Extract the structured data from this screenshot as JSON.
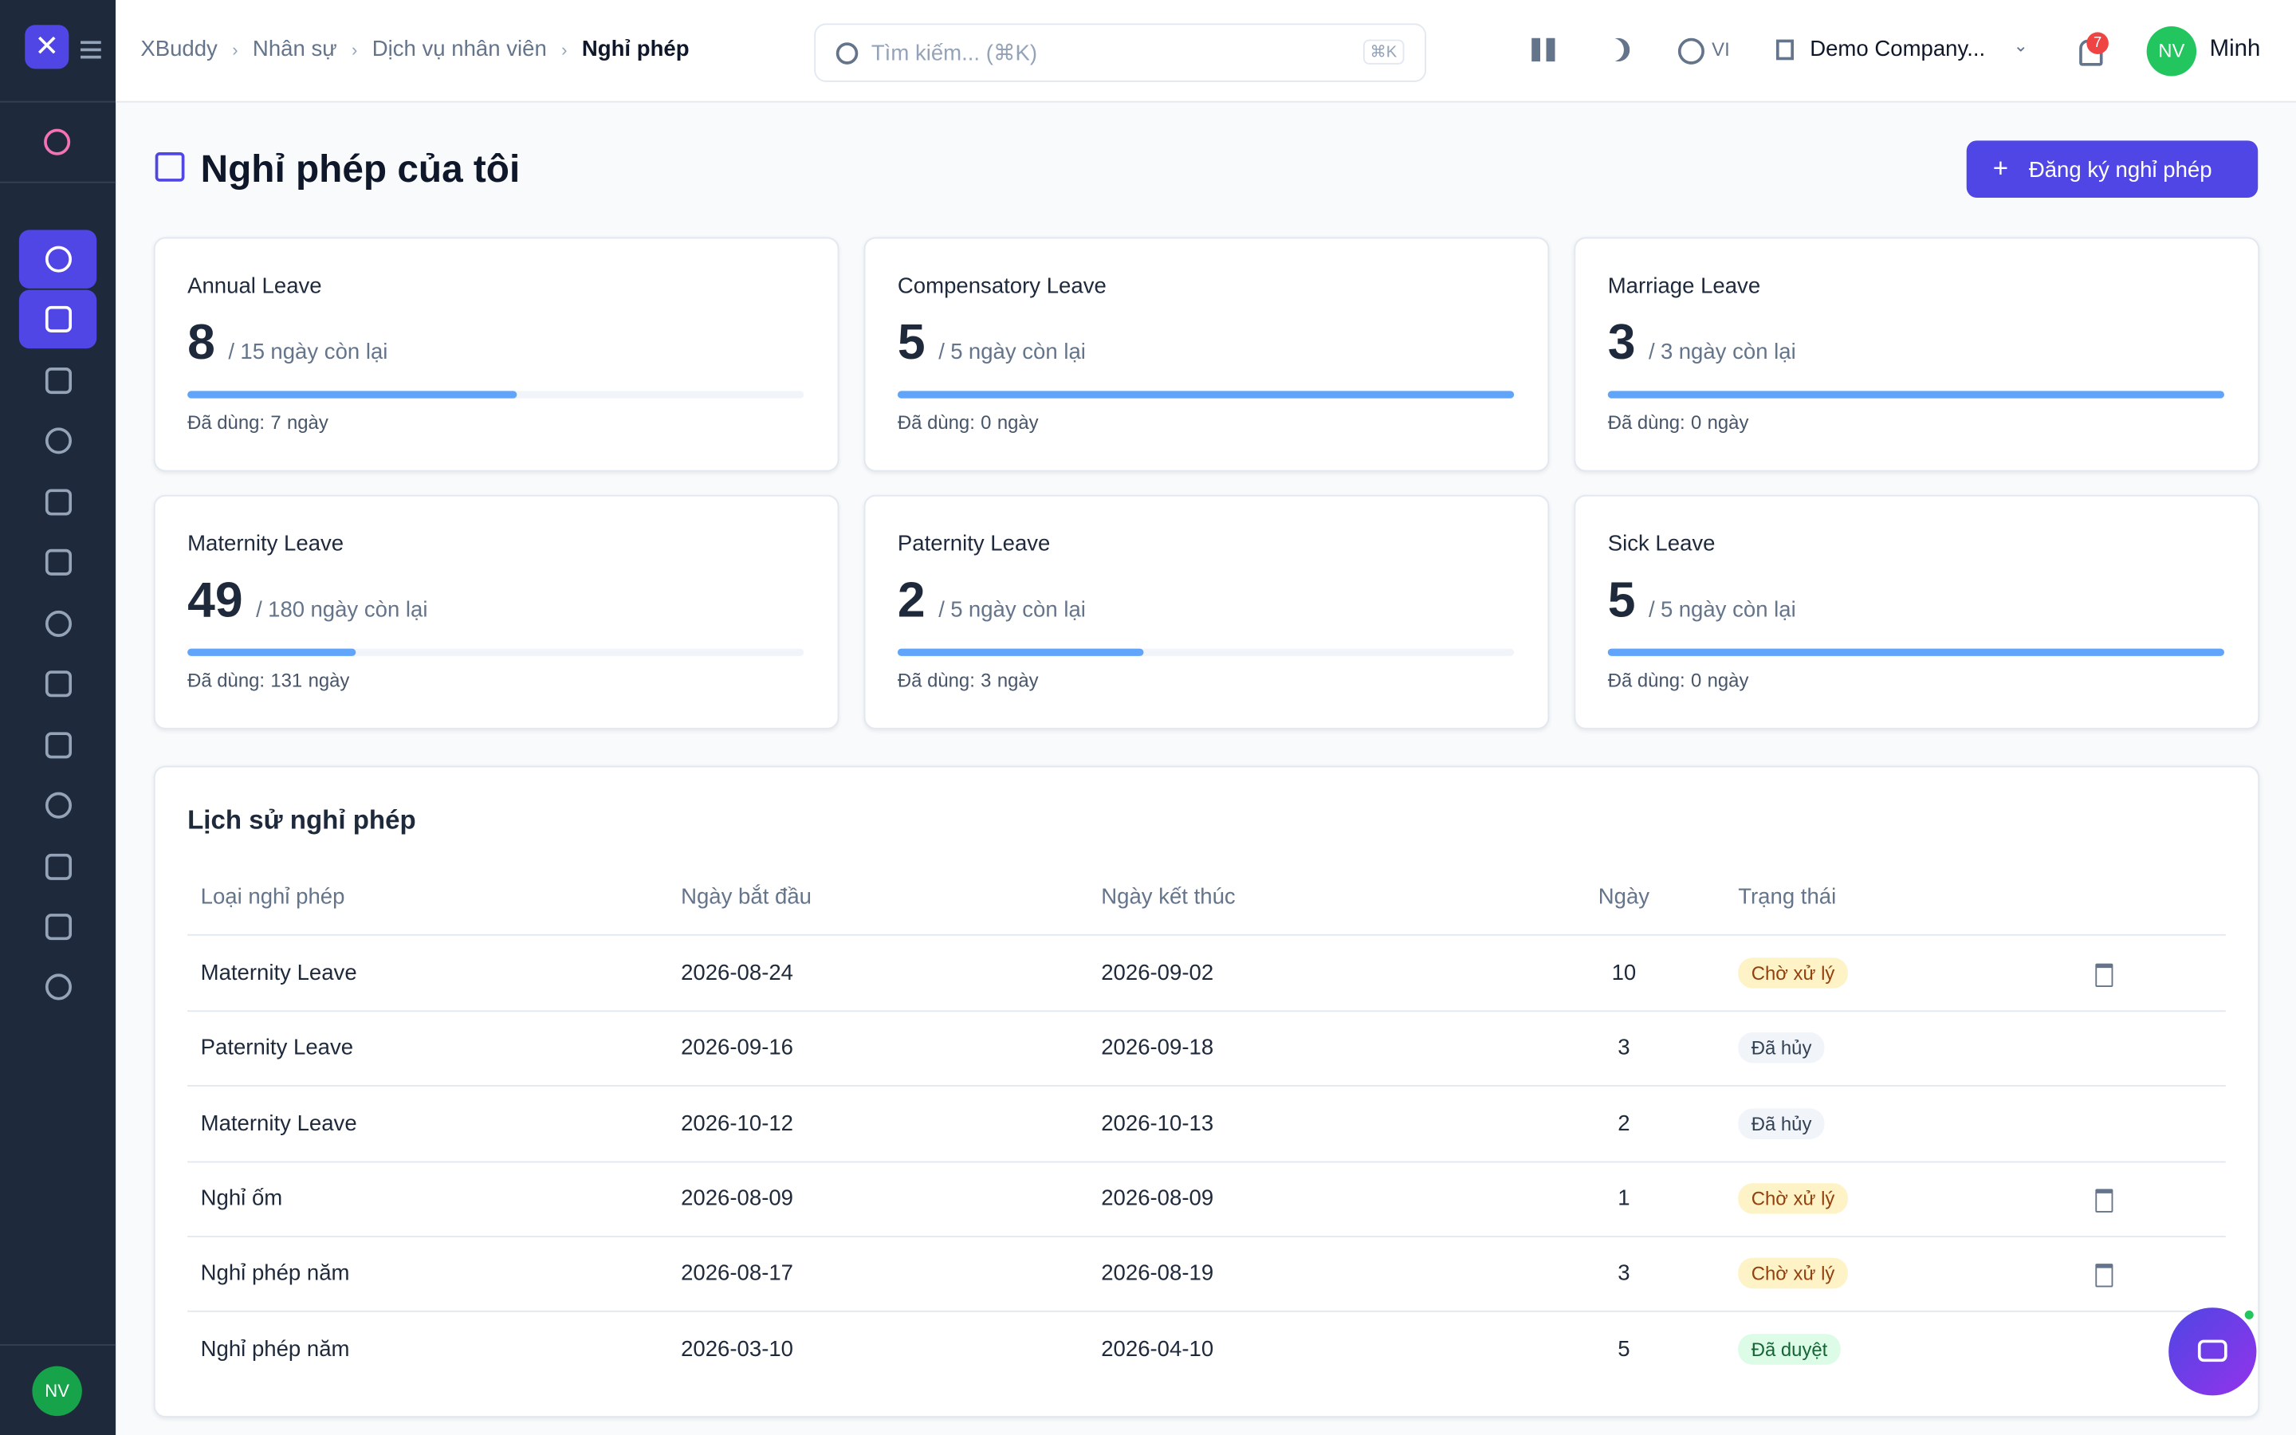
{
  "header": {
    "breadcrumb": [
      "XBuddy",
      "Nhân sự",
      "Dịch vụ nhân viên",
      "Nghỉ phép"
    ],
    "search_placeholder": "Tìm kiếm... (⌘K)",
    "shortcut": "⌘K",
    "language": "VI",
    "company": "Demo Company...",
    "notifications": 7,
    "user_initials": "NV",
    "user_name": "Minh"
  },
  "page": {
    "title": "Nghỉ phép của tôi",
    "action": "Đăng ký nghỉ phép"
  },
  "balance_text": {
    "separator": "/",
    "remaining_suffix": "ngày còn lại",
    "used_prefix": "Đã dùng:",
    "used_suffix": "ngày"
  },
  "balances": [
    {
      "name": "Annual Leave",
      "remaining": 8,
      "total": 15,
      "used": 7
    },
    {
      "name": "Compensatory Leave",
      "remaining": 5,
      "total": 5,
      "used": 0
    },
    {
      "name": "Marriage Leave",
      "remaining": 3,
      "total": 3,
      "used": 0
    },
    {
      "name": "Maternity Leave",
      "remaining": 49,
      "total": 180,
      "used": 131
    },
    {
      "name": "Paternity Leave",
      "remaining": 2,
      "total": 5,
      "used": 3
    },
    {
      "name": "Sick Leave",
      "remaining": 5,
      "total": 5,
      "used": 0
    }
  ],
  "table": {
    "title": "Lịch sử nghỉ phép",
    "columns": [
      "Loại nghỉ phép",
      "Ngày bắt đầu",
      "Ngày kết thúc",
      "Ngày",
      "Trạng thái"
    ],
    "rows": [
      {
        "cells": [
          "Maternity Leave",
          "2026-08-24",
          "2026-09-02",
          10,
          "Chờ xử lý"
        ],
        "tone": "pending",
        "deletable": true
      },
      {
        "cells": [
          "Paternity Leave",
          "2026-09-16",
          "2026-09-18",
          3,
          "Đã hủy"
        ],
        "tone": "cancelled",
        "deletable": false
      },
      {
        "cells": [
          "Maternity Leave",
          "2026-10-12",
          "2026-10-13",
          2,
          "Đã hủy"
        ],
        "tone": "cancelled",
        "deletable": false
      },
      {
        "cells": [
          "Nghỉ ốm",
          "2026-08-09",
          "2026-08-09",
          1,
          "Chờ xử lý"
        ],
        "tone": "pending",
        "deletable": true
      },
      {
        "cells": [
          "Nghỉ phép năm",
          "2026-08-17",
          "2026-08-19",
          3,
          "Chờ xử lý"
        ],
        "tone": "pending",
        "deletable": true
      },
      {
        "cells": [
          "Nghỉ phép năm",
          "2026-03-10",
          "2026-04-10",
          5,
          "Đã duyệt"
        ],
        "tone": "approved",
        "deletable": false
      }
    ]
  },
  "sidebar": {
    "user_initials": "NV"
  }
}
